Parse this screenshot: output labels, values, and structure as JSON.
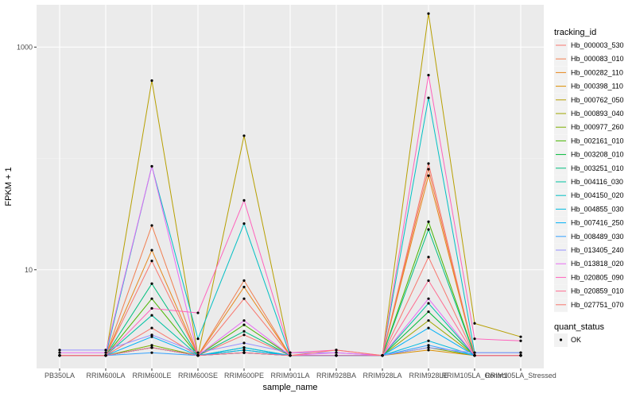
{
  "chart_data": {
    "type": "line",
    "ylabel": "FPKM + 1",
    "xlabel": "sample_name",
    "yscale": "log10",
    "ylim": [
      1.3,
      2400
    ],
    "y_ticks": [
      10,
      1000
    ],
    "y_tick_labels": [
      "10",
      "1000"
    ],
    "grid": true,
    "legend_position": "right",
    "categories": [
      "PB350LA",
      "RRIM600LA",
      "RRIM600LE",
      "RRIM600SE",
      "RRIM600PE",
      "RRIM901LA",
      "RRIM928BA",
      "RRIM928LA",
      "RRIM928LE",
      "RRIM105LA_Control",
      "RRIM105LA_Stressed"
    ],
    "legend_title": "tracking_id",
    "series": [
      {
        "name": "Hb_000003_530",
        "color": "#F8766D",
        "values": [
          1.7,
          1.7,
          3.0,
          1.7,
          2.6,
          1.7,
          1.7,
          1.7,
          13.0,
          1.7,
          1.7
        ]
      },
      {
        "name": "Hb_000083_010",
        "color": "#F17E4F",
        "values": [
          1.7,
          1.7,
          25.0,
          1.7,
          8.0,
          1.7,
          1.7,
          1.7,
          80.0,
          1.7,
          1.7
        ]
      },
      {
        "name": "Hb_000282_110",
        "color": "#E7861B",
        "values": [
          1.7,
          1.7,
          15.0,
          1.7,
          7.0,
          1.7,
          1.7,
          1.7,
          70.0,
          1.7,
          1.7
        ]
      },
      {
        "name": "Hb_000398_110",
        "color": "#DB8E00",
        "values": [
          1.7,
          1.7,
          2.0,
          1.7,
          1.8,
          1.7,
          1.7,
          1.7,
          1.9,
          1.7,
          1.7
        ]
      },
      {
        "name": "Hb_000762_050",
        "color": "#B79F00",
        "values": [
          1.7,
          1.7,
          500.0,
          1.7,
          160.0,
          1.7,
          1.7,
          1.7,
          2000.0,
          3.3,
          2.5
        ]
      },
      {
        "name": "Hb_000893_040",
        "color": "#9DA700",
        "values": [
          1.7,
          1.7,
          2.0,
          1.7,
          1.8,
          1.7,
          1.7,
          1.7,
          3.5,
          1.7,
          1.7
        ]
      },
      {
        "name": "Hb_000977_260",
        "color": "#7CAE00",
        "values": [
          1.7,
          1.7,
          2.1,
          1.7,
          1.9,
          1.7,
          1.7,
          1.7,
          2.0,
          1.7,
          1.7
        ]
      },
      {
        "name": "Hb_002161_010",
        "color": "#49B500",
        "values": [
          1.7,
          1.7,
          5.5,
          1.7,
          3.2,
          1.7,
          1.7,
          1.7,
          27.0,
          1.7,
          1.7
        ]
      },
      {
        "name": "Hb_003208_010",
        "color": "#00BA38",
        "values": [
          1.7,
          1.7,
          2.0,
          1.7,
          1.8,
          1.7,
          1.7,
          1.7,
          4.2,
          1.7,
          1.7
        ]
      },
      {
        "name": "Hb_003251_010",
        "color": "#00BF7D",
        "values": [
          1.7,
          1.7,
          7.5,
          1.7,
          2.8,
          1.7,
          1.7,
          1.7,
          23.0,
          1.7,
          1.7
        ]
      },
      {
        "name": "Hb_004116_030",
        "color": "#00C1A3",
        "values": [
          1.7,
          1.7,
          3.9,
          1.7,
          2.0,
          1.7,
          1.7,
          1.7,
          5.0,
          1.7,
          1.7
        ]
      },
      {
        "name": "Hb_004150_020",
        "color": "#00BFC4",
        "values": [
          1.7,
          1.7,
          85.0,
          2.4,
          26.0,
          1.7,
          1.7,
          1.7,
          350.0,
          1.8,
          1.8
        ]
      },
      {
        "name": "Hb_004855_030",
        "color": "#00BAE0",
        "values": [
          1.7,
          1.7,
          2.0,
          1.7,
          2.0,
          1.7,
          1.7,
          1.7,
          2.3,
          1.7,
          1.7
        ]
      },
      {
        "name": "Hb_007416_250",
        "color": "#00B0F6",
        "values": [
          1.7,
          1.7,
          2.5,
          1.7,
          1.9,
          1.7,
          1.7,
          1.7,
          3.0,
          1.7,
          1.7
        ]
      },
      {
        "name": "Hb_008489_030",
        "color": "#35A2FF",
        "values": [
          1.7,
          1.7,
          1.8,
          1.7,
          1.8,
          1.7,
          1.7,
          1.7,
          2.1,
          1.7,
          1.7
        ]
      },
      {
        "name": "Hb_013405_240",
        "color": "#9590FF",
        "values": [
          1.9,
          1.9,
          2.6,
          1.8,
          2.2,
          1.8,
          1.8,
          1.7,
          2.0,
          1.8,
          1.8
        ]
      },
      {
        "name": "Hb_013818_020",
        "color": "#E76BF3",
        "values": [
          1.8,
          1.8,
          85.0,
          1.7,
          3.5,
          1.7,
          1.8,
          1.7,
          5.5,
          1.7,
          1.7
        ]
      },
      {
        "name": "Hb_020805_090",
        "color": "#FF62BC",
        "values": [
          1.7,
          1.7,
          4.5,
          4.1,
          42.0,
          1.8,
          1.9,
          1.7,
          560.0,
          2.4,
          2.3
        ]
      },
      {
        "name": "Hb_020859_010",
        "color": "#FF6C91",
        "values": [
          1.7,
          1.7,
          2.0,
          1.7,
          1.8,
          1.7,
          1.7,
          1.7,
          8.0,
          1.7,
          1.7
        ]
      },
      {
        "name": "Hb_027751_070",
        "color": "#F8766D",
        "values": [
          1.7,
          1.7,
          12.0,
          1.7,
          5.5,
          1.7,
          1.9,
          1.7,
          90.0,
          1.7,
          1.7
        ]
      }
    ],
    "quant_status_legend": {
      "title": "quant_status",
      "items": [
        "OK"
      ]
    }
  }
}
